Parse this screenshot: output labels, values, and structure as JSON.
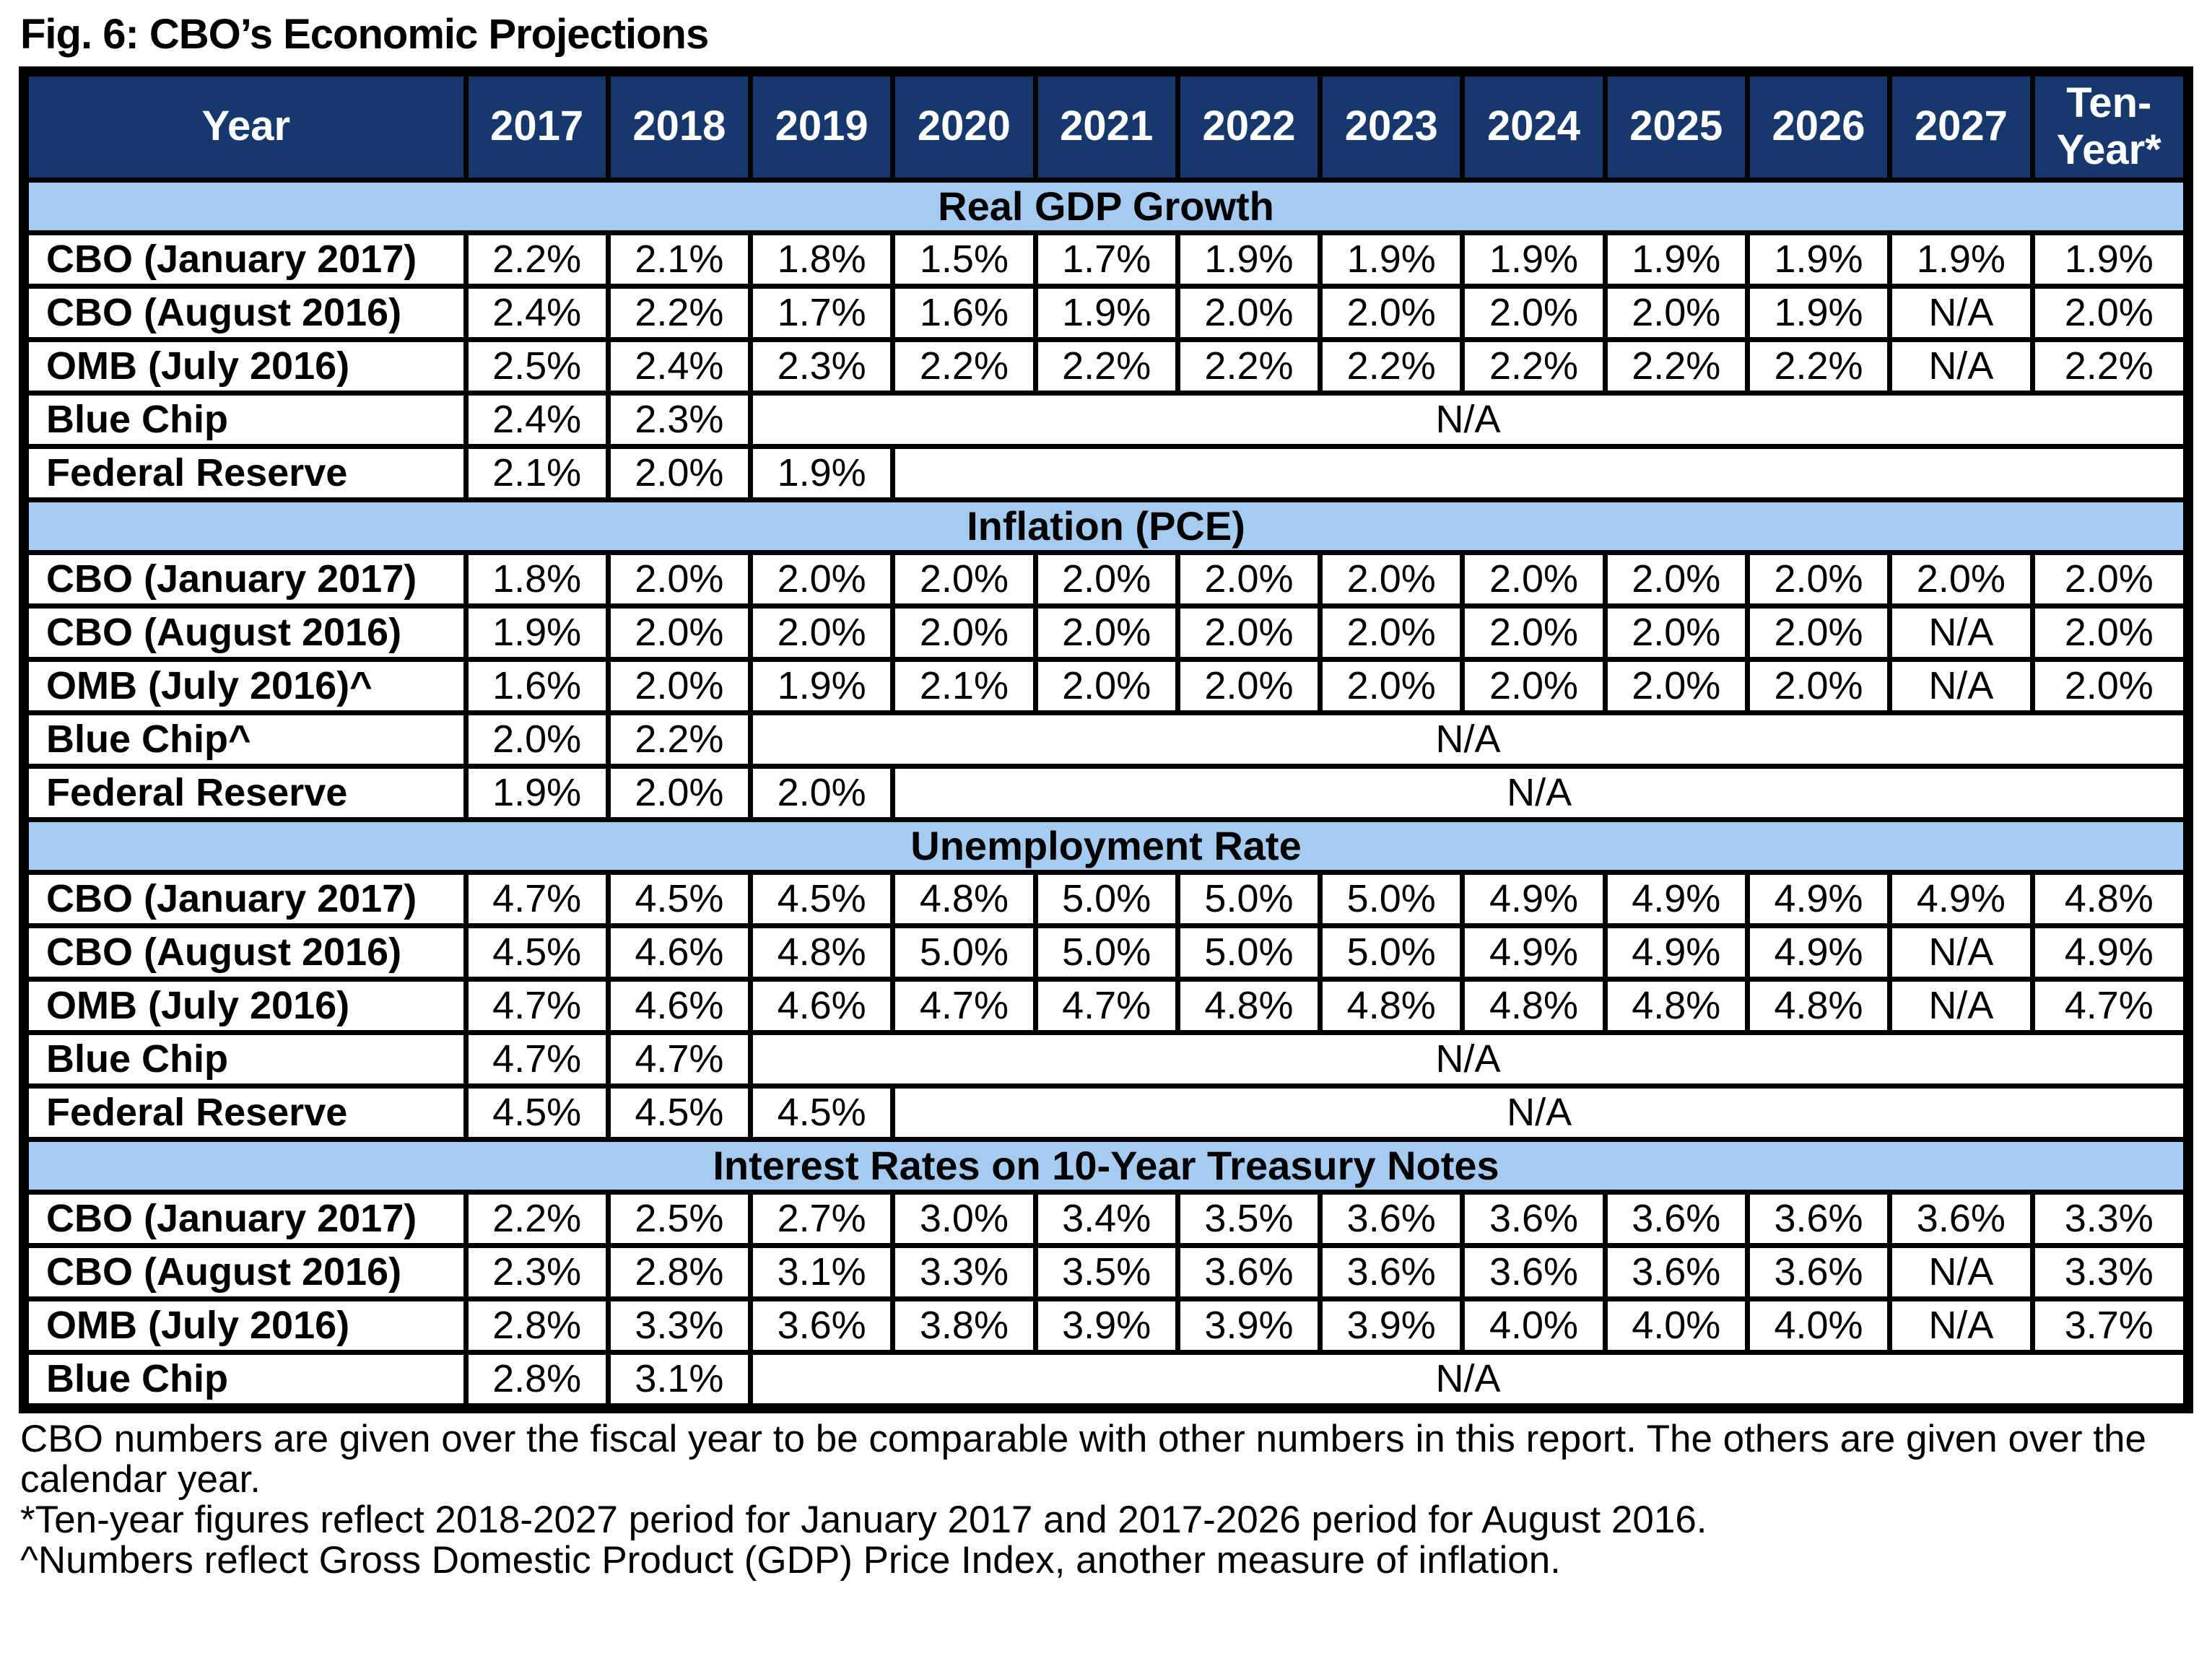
{
  "title": "Fig. 6: CBO’s Economic Projections",
  "colors": {
    "header_bg": "#17386D",
    "header_text": "#FFFFFF",
    "section_bg": "#A5CBF0",
    "border": "#000000",
    "body_text": "#000000"
  },
  "table": {
    "corner_label": "Year",
    "year_columns": [
      "2017",
      "2018",
      "2019",
      "2020",
      "2021",
      "2022",
      "2023",
      "2024",
      "2025",
      "2026",
      "2027",
      "Ten-Year*"
    ],
    "sections": [
      {
        "title": "Real GDP Growth",
        "rows": [
          {
            "label": "CBO (January 2017)",
            "values": [
              "2.2%",
              "2.1%",
              "1.8%",
              "1.5%",
              "1.7%",
              "1.9%",
              "1.9%",
              "1.9%",
              "1.9%",
              "1.9%",
              "1.9%",
              "1.9%"
            ]
          },
          {
            "label": "CBO (August 2016)",
            "values": [
              "2.4%",
              "2.2%",
              "1.7%",
              "1.6%",
              "1.9%",
              "2.0%",
              "2.0%",
              "2.0%",
              "2.0%",
              "1.9%",
              "N/A",
              "2.0%"
            ]
          },
          {
            "label": "OMB (July 2016)",
            "values": [
              "2.5%",
              "2.4%",
              "2.3%",
              "2.2%",
              "2.2%",
              "2.2%",
              "2.2%",
              "2.2%",
              "2.2%",
              "2.2%",
              "N/A",
              "2.2%"
            ]
          },
          {
            "label": "Blue Chip",
            "values": [
              "2.4%",
              "2.3%"
            ],
            "span_text": "N/A"
          },
          {
            "label": "Federal Reserve",
            "values": [
              "2.1%",
              "2.0%",
              "1.9%"
            ],
            "span_text": ""
          }
        ]
      },
      {
        "title": "Inflation (PCE)",
        "rows": [
          {
            "label": "CBO (January 2017)",
            "values": [
              "1.8%",
              "2.0%",
              "2.0%",
              "2.0%",
              "2.0%",
              "2.0%",
              "2.0%",
              "2.0%",
              "2.0%",
              "2.0%",
              "2.0%",
              "2.0%"
            ]
          },
          {
            "label": "CBO (August 2016)",
            "values": [
              "1.9%",
              "2.0%",
              "2.0%",
              "2.0%",
              "2.0%",
              "2.0%",
              "2.0%",
              "2.0%",
              "2.0%",
              "2.0%",
              "N/A",
              "2.0%"
            ]
          },
          {
            "label": "OMB (July 2016)^",
            "values": [
              "1.6%",
              "2.0%",
              "1.9%",
              "2.1%",
              "2.0%",
              "2.0%",
              "2.0%",
              "2.0%",
              "2.0%",
              "2.0%",
              "N/A",
              "2.0%"
            ]
          },
          {
            "label": "Blue Chip^",
            "values": [
              "2.0%",
              "2.2%"
            ],
            "span_text": "N/A"
          },
          {
            "label": "Federal Reserve",
            "values": [
              "1.9%",
              "2.0%",
              "2.0%"
            ],
            "span_text": "N/A"
          }
        ]
      },
      {
        "title": "Unemployment Rate",
        "rows": [
          {
            "label": "CBO (January 2017)",
            "values": [
              "4.7%",
              "4.5%",
              "4.5%",
              "4.8%",
              "5.0%",
              "5.0%",
              "5.0%",
              "4.9%",
              "4.9%",
              "4.9%",
              "4.9%",
              "4.8%"
            ]
          },
          {
            "label": "CBO (August 2016)",
            "values": [
              "4.5%",
              "4.6%",
              "4.8%",
              "5.0%",
              "5.0%",
              "5.0%",
              "5.0%",
              "4.9%",
              "4.9%",
              "4.9%",
              "N/A",
              "4.9%"
            ]
          },
          {
            "label": "OMB (July 2016)",
            "values": [
              "4.7%",
              "4.6%",
              "4.6%",
              "4.7%",
              "4.7%",
              "4.8%",
              "4.8%",
              "4.8%",
              "4.8%",
              "4.8%",
              "N/A",
              "4.7%"
            ]
          },
          {
            "label": "Blue Chip",
            "values": [
              "4.7%",
              "4.7%"
            ],
            "span_text": "N/A"
          },
          {
            "label": "Federal Reserve",
            "values": [
              "4.5%",
              "4.5%",
              "4.5%"
            ],
            "span_text": "N/A"
          }
        ]
      },
      {
        "title": "Interest Rates on 10-Year Treasury Notes",
        "rows": [
          {
            "label": "CBO (January 2017)",
            "values": [
              "2.2%",
              "2.5%",
              "2.7%",
              "3.0%",
              "3.4%",
              "3.5%",
              "3.6%",
              "3.6%",
              "3.6%",
              "3.6%",
              "3.6%",
              "3.3%"
            ]
          },
          {
            "label": "CBO (August 2016)",
            "values": [
              "2.3%",
              "2.8%",
              "3.1%",
              "3.3%",
              "3.5%",
              "3.6%",
              "3.6%",
              "3.6%",
              "3.6%",
              "3.6%",
              "N/A",
              "3.3%"
            ]
          },
          {
            "label": "OMB (July 2016)",
            "values": [
              "2.8%",
              "3.3%",
              "3.6%",
              "3.8%",
              "3.9%",
              "3.9%",
              "3.9%",
              "4.0%",
              "4.0%",
              "4.0%",
              "N/A",
              "3.7%"
            ]
          },
          {
            "label": "Blue Chip",
            "values": [
              "2.8%",
              "3.1%"
            ],
            "span_text": "N/A"
          }
        ]
      }
    ]
  },
  "footnotes": [
    "CBO numbers are given over the fiscal year to be comparable with other numbers in this report. The others are given over the calendar year.",
    "*Ten-year figures reflect 2018-2027 period for January 2017 and 2017-2026 period for August 2016.",
    "^Numbers reflect Gross Domestic Product (GDP) Price Index, another measure of inflation."
  ]
}
